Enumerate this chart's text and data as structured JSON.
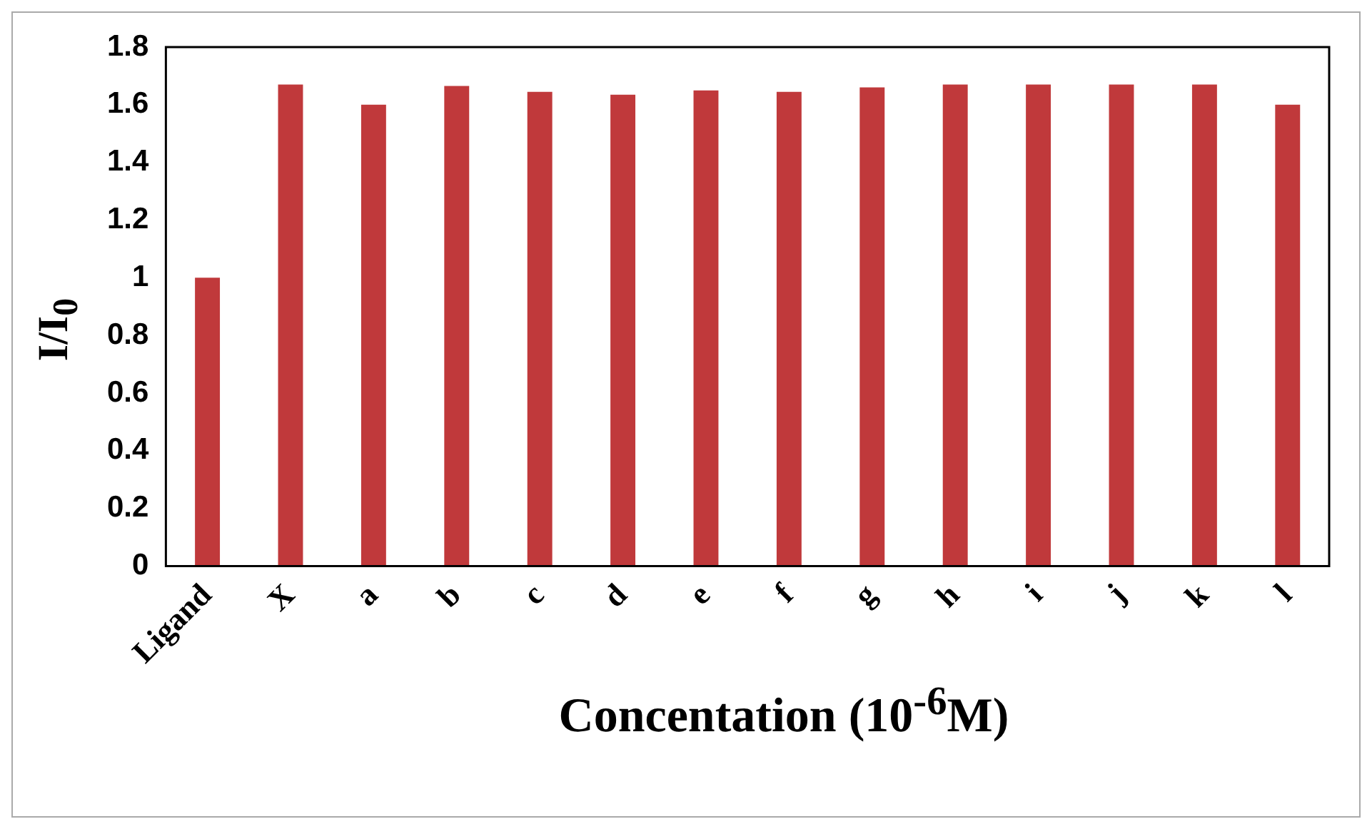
{
  "chart_data": {
    "type": "bar",
    "xlabel": "Concentation (10$^{-6}$M)",
    "ylabel": "I/I$_{0}$",
    "categories": [
      "Ligand",
      "X",
      "a",
      "b",
      "c",
      "d",
      "e",
      "f",
      "g",
      "h",
      "i",
      "j",
      "k",
      "l"
    ],
    "values": [
      1.0,
      1.67,
      1.6,
      1.665,
      1.645,
      1.635,
      1.65,
      1.645,
      1.66,
      1.67,
      1.67,
      1.67,
      1.67,
      1.6
    ],
    "color": "#c0393b",
    "ylim": [
      0,
      1.8
    ],
    "yticks": [
      0,
      0.2,
      0.4,
      0.6,
      0.8,
      1,
      1.2,
      1.4,
      1.6,
      1.8
    ],
    "grid": false,
    "legend": false
  }
}
